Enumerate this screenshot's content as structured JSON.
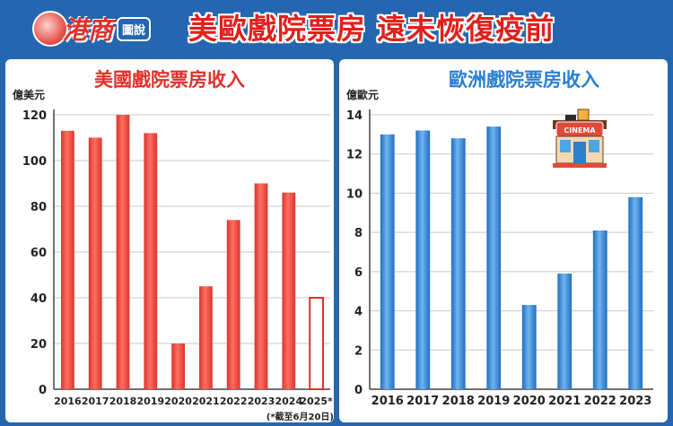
{
  "header": {
    "logo_main": "港商",
    "logo_sub": "圖說",
    "headline": "美歐戲院票房 遠未恢復疫前"
  },
  "cinema_sign": "CINEMA",
  "colors": {
    "us_bar": "#e8433a",
    "eu_bar": "#2a7fd0",
    "background": "#2466b0"
  },
  "chart_data": [
    {
      "type": "bar",
      "title": "美國戲院票房收入",
      "ylabel": "億美元",
      "ylim": [
        0,
        120
      ],
      "yticks": [
        0,
        20,
        40,
        60,
        80,
        100,
        120
      ],
      "categories": [
        "2016",
        "2017",
        "2018",
        "2019",
        "2020",
        "2021",
        "2022",
        "2023",
        "2024",
        "2025*"
      ],
      "values": [
        113,
        110,
        120,
        112,
        20,
        45,
        74,
        90,
        86,
        40
      ],
      "note": "(*截至6月20日)"
    },
    {
      "type": "bar",
      "title": "歐洲戲院票房收入",
      "ylabel": "億歐元",
      "ylim": [
        0,
        14
      ],
      "yticks": [
        0,
        2,
        4,
        6,
        8,
        10,
        12,
        14
      ],
      "categories": [
        "2016",
        "2017",
        "2018",
        "2019",
        "2020",
        "2021",
        "2022",
        "2023"
      ],
      "values": [
        13.0,
        13.2,
        12.8,
        13.4,
        4.3,
        5.9,
        8.1,
        9.8
      ]
    }
  ]
}
